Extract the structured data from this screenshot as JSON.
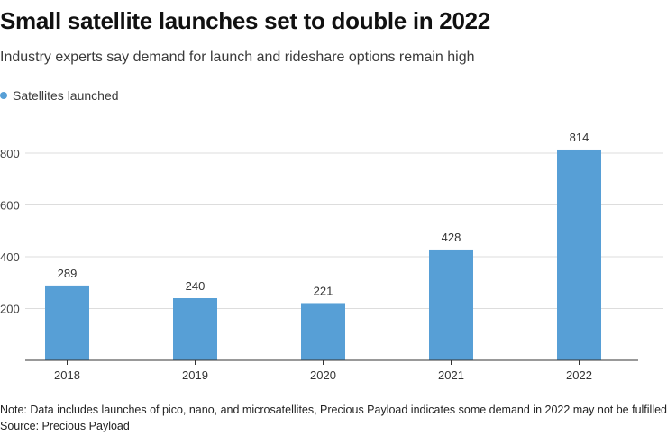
{
  "title": "Small satellite launches set to double in 2022",
  "subtitle": "Industry experts say demand for launch and rideshare options remain high",
  "legend_label": "Satellites launched",
  "note": "Note: Data includes launches of pico, nano, and microsatellites, Precious Payload indicates some demand in 2022 may not be fulfilled",
  "source": "Source: Precious Payload",
  "colors": {
    "bar": "#579fd6",
    "grid": "#dddddd",
    "axis": "#333333"
  },
  "chart_data": {
    "type": "bar",
    "categories": [
      "2018",
      "2019",
      "2020",
      "2021",
      "2022"
    ],
    "series": [
      {
        "name": "Satellites launched",
        "values": [
          289,
          240,
          221,
          428,
          814
        ]
      }
    ],
    "yticks": [
      200,
      400,
      600,
      800
    ],
    "ylim": [
      0,
      900
    ],
    "grid": true,
    "legend_position": "top-left",
    "data_labels": true
  }
}
